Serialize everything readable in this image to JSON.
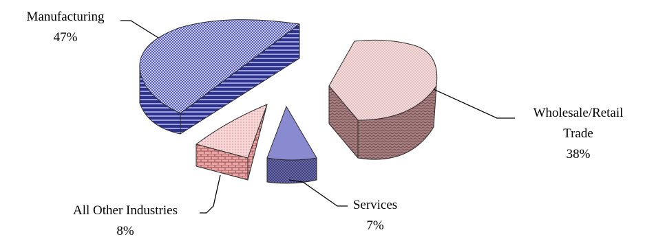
{
  "chart_data": {
    "type": "pie",
    "style": "3d-exploded",
    "title": "",
    "slices": [
      {
        "name_lines": [
          "Manufacturing"
        ],
        "pct_label": "47%",
        "value": 47,
        "color": "#5a5fc0",
        "side_color": "#3a3f9a"
      },
      {
        "name_lines": [
          "Wholesale/Retail",
          "Trade"
        ],
        "pct_label": "38%",
        "value": 38,
        "color": "#f2cccc",
        "side_color": "#9a6f72"
      },
      {
        "name_lines": [
          "Services"
        ],
        "pct_label": "7%",
        "value": 7,
        "color": "#8a8ad0",
        "side_color": "#4d4d8c"
      },
      {
        "name_lines": [
          "All Other Industries"
        ],
        "pct_label": "8%",
        "value": 8,
        "color": "#f0c4c4",
        "side_color": "#c88080"
      }
    ]
  }
}
